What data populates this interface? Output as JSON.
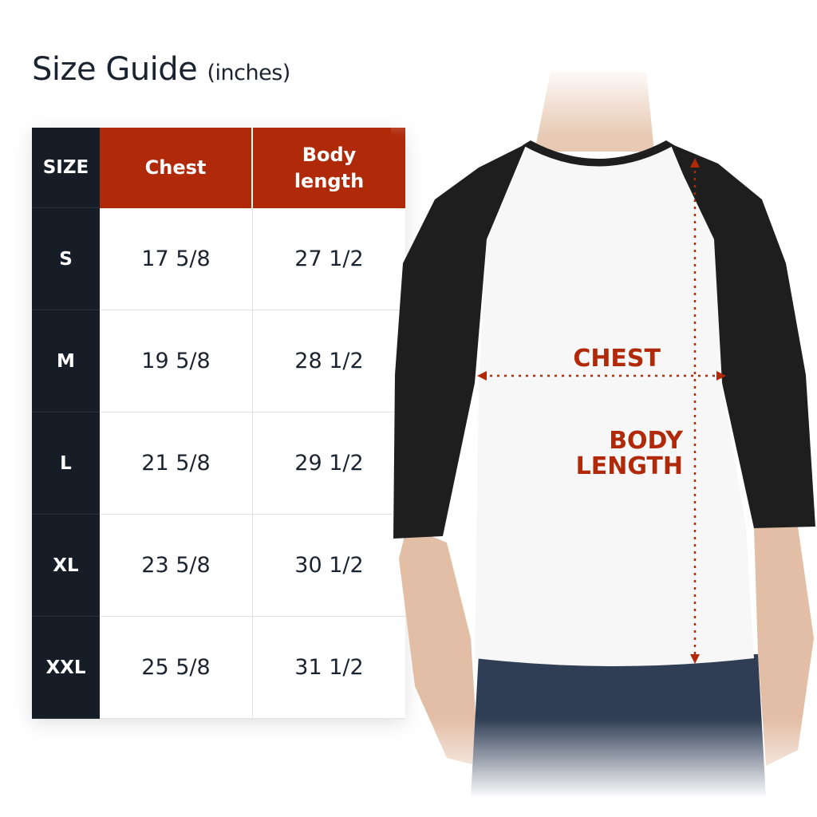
{
  "title": {
    "main": "Size Guide",
    "unit": "(inches)"
  },
  "table": {
    "headers": [
      "SIZE",
      "Chest",
      "Body length"
    ],
    "rows": [
      {
        "size": "S",
        "chest": "17 5/8",
        "length": "27 1/2"
      },
      {
        "size": "M",
        "chest": "19 5/8",
        "length": "28 1/2"
      },
      {
        "size": "L",
        "chest": "21 5/8",
        "length": "29 1/2"
      },
      {
        "size": "XL",
        "chest": "23 5/8",
        "length": "30 1/2"
      },
      {
        "size": "XXL",
        "chest": "25 5/8",
        "length": "31 1/2"
      }
    ]
  },
  "diagram": {
    "chest_label": "CHEST",
    "length_label_1": "BODY",
    "length_label_2": "LENGTH"
  },
  "colors": {
    "navy": "#161d27",
    "accent": "#b02a0a"
  }
}
